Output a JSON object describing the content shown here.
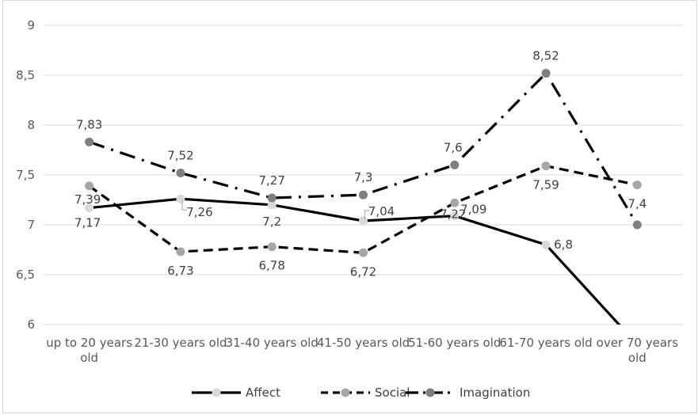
{
  "chart_data": {
    "type": "line",
    "categories": [
      "up to 20 years old",
      "21-30 years old",
      "31-40 years old",
      "41-50 years old",
      "51-60 years old",
      "61-70 years old",
      "over 70 years old"
    ],
    "category_lines": [
      [
        "up to 20 years",
        "old"
      ],
      [
        "21-30 years old"
      ],
      [
        "31-40 years old"
      ],
      [
        "41-50 years old"
      ],
      [
        "51-60 years old"
      ],
      [
        "61-70 years old"
      ],
      [
        "over 70 years",
        "old"
      ]
    ],
    "ylim": [
      6,
      9
    ],
    "yticks": [
      "6",
      "6,5",
      "7",
      "7,5",
      "8",
      "8,5",
      "9"
    ],
    "ytick_values": [
      6,
      6.5,
      7,
      7.5,
      8,
      8.5,
      9
    ],
    "grid": true,
    "legend_position": "bottom",
    "series": [
      {
        "name": "Affect",
        "values": [
          7.17,
          7.26,
          7.2,
          7.04,
          7.09,
          6.8,
          5.8
        ],
        "labels": [
          "7,17",
          "7,26",
          "7,2",
          "7,04",
          "7,09",
          "6,8",
          ""
        ],
        "line_color": "#000000",
        "marker_color": "#d9d9d9",
        "dash": "solid"
      },
      {
        "name": "Social",
        "values": [
          7.39,
          6.73,
          6.78,
          6.72,
          7.22,
          7.59,
          7.4
        ],
        "labels": [
          "7,39",
          "6,73",
          "6,78",
          "6,72",
          "7,22",
          "7,59",
          "7,4"
        ],
        "line_color": "#000000",
        "marker_color": "#a6a6a6",
        "dash": "dash"
      },
      {
        "name": "Imagination",
        "values": [
          7.83,
          7.52,
          7.27,
          7.3,
          7.6,
          8.52,
          7.0
        ],
        "labels": [
          "7,83",
          "7,52",
          "7,27",
          "7,3",
          "7,6",
          "8,52",
          ""
        ],
        "line_color": "#000000",
        "marker_color": "#7f7f7f",
        "dash": "dash-dot"
      }
    ]
  }
}
